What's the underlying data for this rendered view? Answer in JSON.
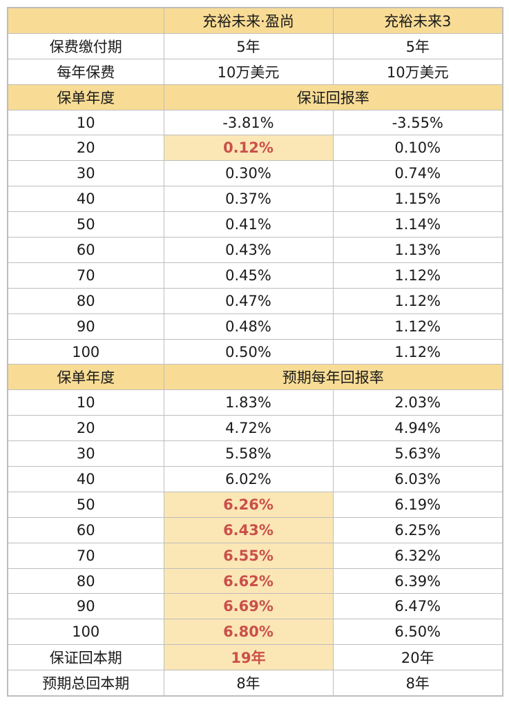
{
  "header": {
    "col1": "",
    "col2": "充裕未来·盈尚",
    "col3": "充裕未来3"
  },
  "payment": {
    "label": "保费缴付期",
    "v1": "5年",
    "v2": "5年"
  },
  "premium": {
    "label": "每年保费",
    "v1": "10万美元",
    "v2": "10万美元"
  },
  "guaranteed": {
    "label": "保单年度",
    "title": "保证回报率",
    "rows": [
      {
        "year": "10",
        "v1": "-3.81%",
        "v2": "-3.55%"
      },
      {
        "year": "20",
        "v1": "0.12%",
        "v2": "0.10%"
      },
      {
        "year": "30",
        "v1": "0.30%",
        "v2": "0.74%"
      },
      {
        "year": "40",
        "v1": "0.37%",
        "v2": "1.15%"
      },
      {
        "year": "50",
        "v1": "0.41%",
        "v2": "1.14%"
      },
      {
        "year": "60",
        "v1": "0.43%",
        "v2": "1.13%"
      },
      {
        "year": "70",
        "v1": "0.45%",
        "v2": "1.12%"
      },
      {
        "year": "80",
        "v1": "0.47%",
        "v2": "1.12%"
      },
      {
        "year": "90",
        "v1": "0.48%",
        "v2": "1.12%"
      },
      {
        "year": "100",
        "v1": "0.50%",
        "v2": "1.12%"
      }
    ]
  },
  "expected": {
    "label": "保单年度",
    "title": "预期每年回报率",
    "rows": [
      {
        "year": "10",
        "v1": "1.83%",
        "v2": "2.03%"
      },
      {
        "year": "20",
        "v1": "4.72%",
        "v2": "4.94%"
      },
      {
        "year": "30",
        "v1": "5.58%",
        "v2": "5.63%"
      },
      {
        "year": "40",
        "v1": "6.02%",
        "v2": "6.03%"
      },
      {
        "year": "50",
        "v1": "6.26%",
        "v2": "6.19%"
      },
      {
        "year": "60",
        "v1": "6.43%",
        "v2": "6.25%"
      },
      {
        "year": "70",
        "v1": "6.55%",
        "v2": "6.32%"
      },
      {
        "year": "80",
        "v1": "6.62%",
        "v2": "6.39%"
      },
      {
        "year": "90",
        "v1": "6.69%",
        "v2": "6.47%"
      },
      {
        "year": "100",
        "v1": "6.80%",
        "v2": "6.50%"
      }
    ]
  },
  "breakeven": {
    "label": "保证回本期",
    "v1": "19年",
    "v2": "20年"
  },
  "expected_breakeven": {
    "label": "预期总回本期",
    "v1": "8年",
    "v2": "8年"
  },
  "colors": {
    "header_bg": "#f8dc95",
    "highlight_bg": "#fbe6b5",
    "highlight_text": "#c9504a",
    "border": "#bdbdbd"
  }
}
